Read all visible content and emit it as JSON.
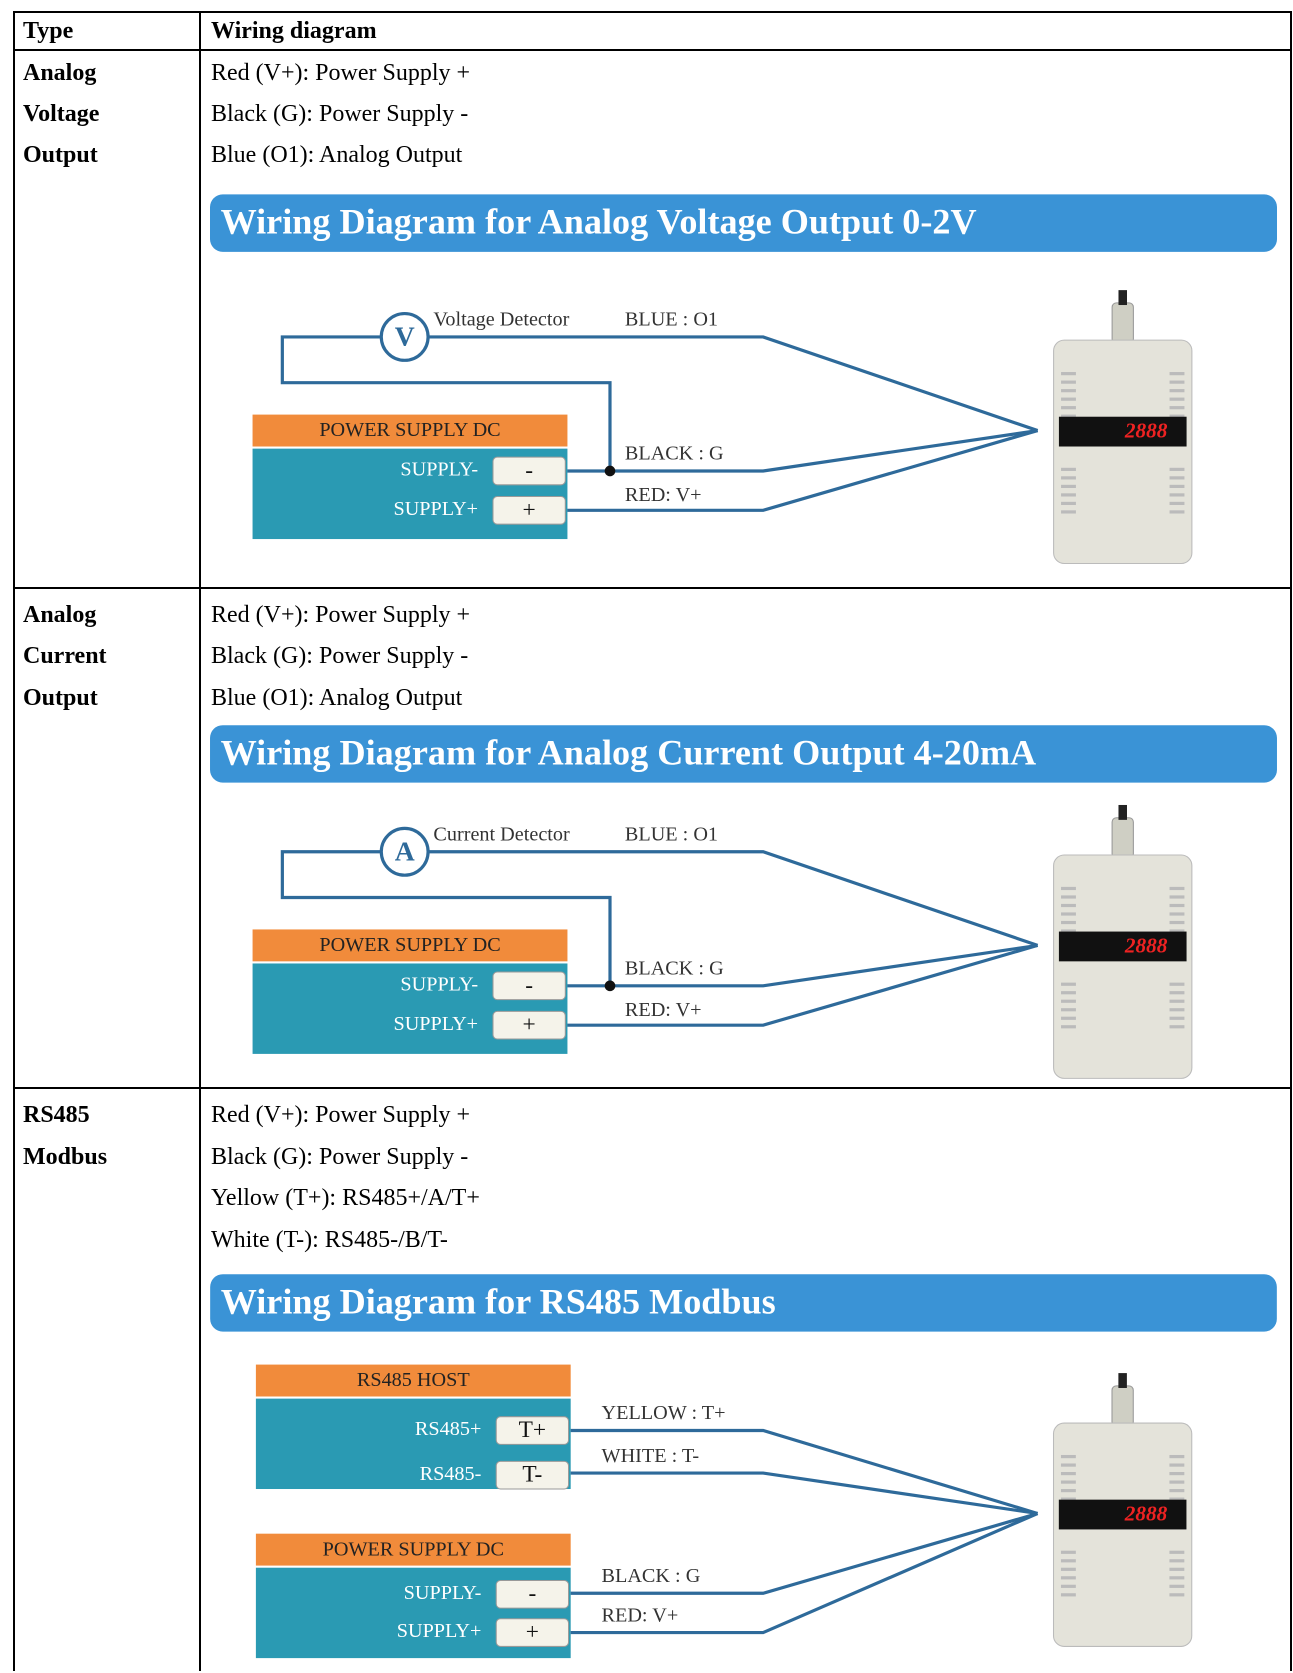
{
  "header": {
    "type": "Type",
    "wiring": "Wiring diagram"
  },
  "rows": [
    {
      "type": [
        "Analog",
        "Voltage",
        "Output"
      ],
      "lines": [
        "Red (V+): Power Supply +",
        "Black (G): Power Supply -",
        "Blue (O1): Analog Output"
      ],
      "diagram": {
        "title": "Wiring Diagram for Analog Voltage Output 0-2V",
        "detector_symbol": "V",
        "detector_label": "Voltage Detector",
        "wires": [
          "BLUE : O1",
          "BLACK : G",
          "RED: V+"
        ],
        "supply": {
          "title": "POWER SUPPLY DC",
          "terminals": [
            {
              "label": "SUPPLY-",
              "symbol": "-"
            },
            {
              "label": "SUPPLY+",
              "symbol": "+"
            }
          ]
        },
        "display": "2888"
      }
    },
    {
      "type": [
        "Analog",
        "Current",
        "Output"
      ],
      "lines": [
        "Red (V+): Power Supply +",
        "Black (G): Power Supply -",
        "Blue (O1): Analog Output"
      ],
      "diagram": {
        "title": "Wiring Diagram for Analog Current Output 4-20mA",
        "detector_symbol": "A",
        "detector_label": "Current Detector",
        "wires": [
          "BLUE : O1",
          "BLACK : G",
          "RED: V+"
        ],
        "supply": {
          "title": "POWER SUPPLY DC",
          "terminals": [
            {
              "label": "SUPPLY-",
              "symbol": "-"
            },
            {
              "label": "SUPPLY+",
              "symbol": "+"
            }
          ]
        },
        "display": "2888"
      }
    },
    {
      "type": [
        "RS485",
        "Modbus"
      ],
      "lines": [
        "Red (V+): Power Supply +",
        "Black (G): Power Supply -",
        "Yellow (T+): RS485+/A/T+",
        "White (T-): RS485-/B/T-"
      ],
      "diagram": {
        "title": "Wiring Diagram for RS485 Modbus",
        "wires": [
          "YELLOW : T+",
          "WHITE : T-",
          "BLACK : G",
          "RED: V+"
        ],
        "host": {
          "title": "RS485 HOST",
          "terminals": [
            {
              "label": "RS485+",
              "symbol": "T+"
            },
            {
              "label": "RS485-",
              "symbol": "T-"
            }
          ]
        },
        "supply": {
          "title": "POWER SUPPLY DC",
          "terminals": [
            {
              "label": "SUPPLY-",
              "symbol": "-"
            },
            {
              "label": "SUPPLY+",
              "symbol": "+"
            }
          ]
        },
        "display": "2888"
      }
    }
  ]
}
